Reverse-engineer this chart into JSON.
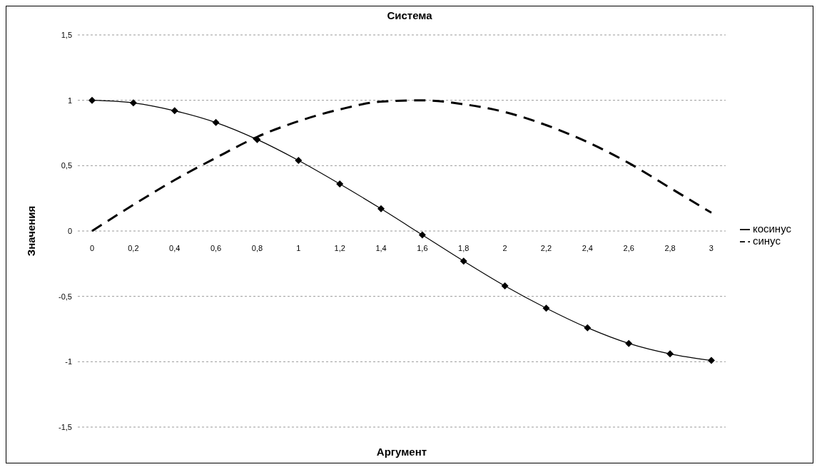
{
  "chart_data": {
    "type": "line",
    "title": "Система",
    "xlabel": "Аргумент",
    "ylabel": "Значения",
    "categories": [
      "0",
      "0,2",
      "0,4",
      "0,6",
      "0,8",
      "1",
      "1,2",
      "1,4",
      "1,6",
      "1,8",
      "2",
      "2,2",
      "2,4",
      "2,6",
      "2,8",
      "3"
    ],
    "series": [
      {
        "name": "синус",
        "color": "#000000",
        "line_style": "dashed",
        "marker": "none",
        "values": [
          0,
          0.2,
          0.39,
          0.56,
          0.72,
          0.84,
          0.93,
          0.99,
          1.0,
          0.97,
          0.91,
          0.81,
          0.68,
          0.52,
          0.33,
          0.14
        ]
      },
      {
        "name": "косинус",
        "color": "#000000",
        "line_style": "solid",
        "marker": "diamond",
        "values": [
          1,
          0.98,
          0.92,
          0.83,
          0.7,
          0.54,
          0.36,
          0.17,
          -0.03,
          -0.23,
          -0.42,
          -0.59,
          -0.74,
          -0.86,
          -0.94,
          -0.99
        ]
      }
    ],
    "ylim": [
      -1.5,
      1.5
    ],
    "yticks": [
      {
        "value": -1.5,
        "label": "-1,5"
      },
      -1,
      {
        "value": -0.5,
        "label": "-0,5"
      },
      0,
      {
        "value": 0.5,
        "label": "0,5"
      },
      1,
      {
        "value": 1.5,
        "label": "1,5"
      }
    ],
    "grid": "y",
    "legend": "right"
  }
}
